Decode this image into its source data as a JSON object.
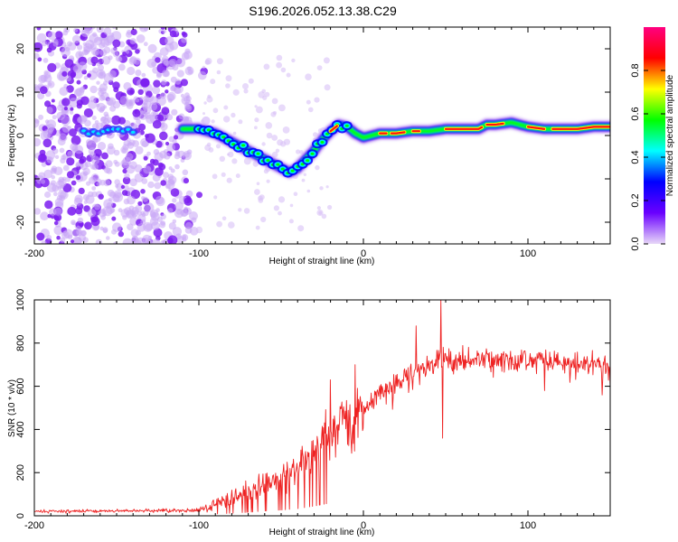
{
  "title": "S196.2026.052.13.38.C29",
  "chart_data": [
    {
      "type": "heatmap",
      "name": "spectrogram",
      "xlabel": "Height of straight line (km)",
      "ylabel": "Frequency (Hz)",
      "xlim": [
        -200,
        150
      ],
      "ylim": [
        -25,
        25
      ],
      "xticks": [
        -200,
        -100,
        0,
        100
      ],
      "yticks": [
        -20,
        -10,
        0,
        10,
        20
      ],
      "colorbar": {
        "label": "Normalized spectral amplitude",
        "range": [
          0,
          1
        ],
        "ticks": [
          "0.0",
          "0.2",
          "0.4",
          "0.6",
          "0.8"
        ],
        "tick_values": [
          0,
          0.2,
          0.4,
          0.6,
          0.8
        ],
        "colors": [
          "#e8d8f8",
          "#6a00ff",
          "#0000ff",
          "#00ffff",
          "#00ff00",
          "#ffff00",
          "#ff0000",
          "#ff0080"
        ]
      },
      "ridge": {
        "x": [
          -110,
          -100,
          -90,
          -80,
          -70,
          -60,
          -50,
          -45,
          -40,
          -35,
          -30,
          -25,
          -20,
          -15,
          -10,
          -5,
          0,
          10,
          20,
          30,
          40,
          50,
          60,
          70,
          75,
          80,
          90,
          100,
          110,
          120,
          130,
          140,
          150
        ],
        "y": [
          1.5,
          1.5,
          0.5,
          -1.5,
          -3.5,
          -5.5,
          -7.5,
          -8.5,
          -7.5,
          -5.5,
          -3.5,
          -1,
          1,
          2.5,
          2,
          0.5,
          -0.5,
          0.5,
          0.5,
          1,
          1,
          1.5,
          1.5,
          1.5,
          2.5,
          2.5,
          3,
          2,
          1.5,
          1.5,
          1.5,
          2,
          2
        ]
      }
    },
    {
      "type": "line",
      "name": "snr",
      "xlabel": "Height of straight line (km)",
      "ylabel": "SNR (10 * v/v)",
      "xlim": [
        -200,
        150
      ],
      "ylim": [
        0,
        1000
      ],
      "xticks": [
        -200,
        -100,
        0,
        100
      ],
      "yticks": [
        0,
        200,
        400,
        600,
        800,
        1000
      ],
      "color": "#ee2222",
      "envelope": {
        "x": [
          -200,
          -100,
          -95,
          -90,
          -80,
          -70,
          -60,
          -50,
          -40,
          -30,
          -20,
          -10,
          0,
          10,
          20,
          30,
          40,
          50,
          60,
          70,
          80,
          90,
          100,
          110,
          120,
          130,
          140,
          150
        ],
        "y": [
          20,
          25,
          40,
          60,
          80,
          110,
          150,
          180,
          220,
          300,
          400,
          450,
          500,
          560,
          620,
          660,
          700,
          720,
          720,
          730,
          720,
          720,
          720,
          710,
          700,
          700,
          700,
          700
        ]
      },
      "spikes": [
        {
          "x": 47,
          "y": 1000
        },
        {
          "x": 48,
          "y": 360
        },
        {
          "x": 32,
          "y": 880
        },
        {
          "x": 110,
          "y": 580
        },
        {
          "x": -20,
          "y": 630
        },
        {
          "x": -5,
          "y": 700
        },
        {
          "x": 145,
          "y": 560
        }
      ]
    }
  ]
}
